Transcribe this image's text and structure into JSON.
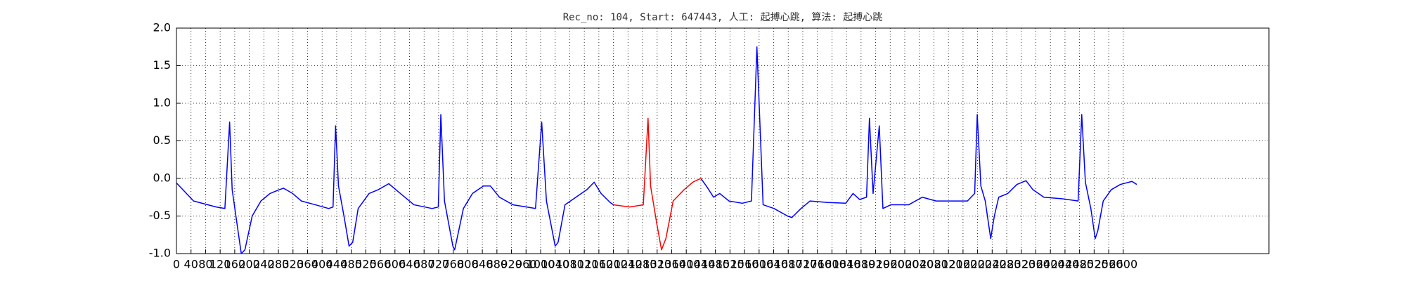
{
  "chart_data": {
    "type": "line",
    "title": "Rec_no: 104, Start: 647443, 人工: 起搏心跳, 算法: 起搏心跳",
    "xlim": [
      0,
      3000
    ],
    "ylim": [
      -1.0,
      2.0
    ],
    "xticks": [
      0,
      40,
      80,
      120,
      160,
      200,
      240,
      280,
      320,
      360,
      400,
      440,
      480,
      520,
      560,
      600,
      640,
      680,
      720,
      760,
      800,
      840,
      880,
      920,
      960,
      1000,
      1040,
      1080,
      1120,
      1160,
      1200,
      1240,
      1280,
      1320,
      1360,
      1400,
      1440,
      1480,
      1520,
      1560,
      1600,
      1640,
      1680,
      1720,
      1760,
      1800,
      1840,
      1880,
      1920,
      1960,
      2000,
      2040,
      2080,
      2120,
      2160,
      2200,
      2240,
      2280,
      2320,
      2360,
      2400,
      2440,
      2480,
      2520,
      2560,
      2600
    ],
    "yticks": [
      {
        "value": -1.0,
        "label": "-1.0"
      },
      -0.5,
      {
        "value": 0.0,
        "label": "0.0"
      },
      0.5,
      {
        "value": 1.0,
        "label": "1.0"
      },
      1.5,
      {
        "value": 2.0,
        "label": "2.0"
      }
    ],
    "grid": true,
    "series": [
      {
        "color": "#0000ff",
        "x": [
          0,
          47,
          109,
          133,
          146,
          153,
          178,
          188,
          208,
          232,
          257,
          282,
          294,
          319,
          343,
          381,
          418,
          430,
          437,
          445,
          460,
          474,
          484,
          499,
          529,
          554,
          583,
          615,
          652,
          702,
          719,
          726,
          736,
          759,
          764,
          788,
          813,
          843,
          862,
          887,
          924,
          986,
          1003,
          1016,
          1040,
          1048,
          1067,
          1097,
          1127,
          1147,
          1166,
          1191,
          1200,
          1320,
          1440,
          1455,
          1475,
          1492,
          1517,
          1554,
          1579,
          1594,
          1611,
          1641,
          1678,
          1690,
          1715,
          1740,
          1789,
          1838,
          1858,
          1876,
          1895,
          1903,
          1913,
          1930,
          1940,
          1962,
          2011,
          2048,
          2086,
          2135,
          2172,
          2192,
          2199,
          2209,
          2221,
          2236,
          2246,
          2258,
          2283,
          2308,
          2333,
          2352,
          2382,
          2431,
          2476,
          2486,
          2496,
          2511,
          2523,
          2530,
          2545,
          2567,
          2592,
          2624,
          2637
        ],
        "values": [
          -0.06,
          -0.3,
          -0.38,
          -0.4,
          0.75,
          -0.15,
          -1.0,
          -0.95,
          -0.5,
          -0.3,
          -0.2,
          -0.15,
          -0.13,
          -0.2,
          -0.3,
          -0.35,
          -0.4,
          -0.38,
          0.7,
          -0.1,
          -0.5,
          -0.9,
          -0.85,
          -0.4,
          -0.2,
          -0.15,
          -0.07,
          -0.2,
          -0.35,
          -0.4,
          -0.38,
          0.85,
          -0.3,
          -0.9,
          -0.95,
          -0.4,
          -0.2,
          -0.1,
          -0.1,
          -0.25,
          -0.35,
          -0.4,
          0.75,
          -0.3,
          -0.9,
          -0.85,
          -0.35,
          -0.25,
          -0.15,
          -0.05,
          -0.2,
          -0.32,
          -0.35,
          null,
          0.0,
          -0.1,
          -0.25,
          -0.2,
          -0.3,
          -0.33,
          -0.3,
          1.75,
          -0.35,
          -0.4,
          -0.5,
          -0.52,
          -0.4,
          -0.3,
          -0.32,
          -0.33,
          -0.2,
          -0.28,
          -0.25,
          0.8,
          -0.2,
          0.7,
          -0.4,
          -0.35,
          -0.35,
          -0.25,
          -0.3,
          -0.3,
          -0.3,
          -0.2,
          0.85,
          -0.1,
          -0.3,
          -0.8,
          -0.5,
          -0.25,
          -0.2,
          -0.08,
          -0.03,
          -0.15,
          -0.25,
          -0.27,
          -0.3,
          0.85,
          -0.05,
          -0.4,
          -0.8,
          -0.7,
          -0.3,
          -0.15,
          -0.08,
          -0.04,
          -0.08
        ]
      },
      {
        "color": "#ff0000",
        "x": [
          1200,
          1245,
          1282,
          1295,
          1302,
          1319,
          1332,
          1344,
          1364,
          1394,
          1418,
          1440
        ],
        "values": [
          -0.35,
          -0.38,
          -0.35,
          0.8,
          -0.1,
          -0.6,
          -0.95,
          -0.8,
          -0.3,
          -0.15,
          -0.05,
          0.0
        ]
      }
    ]
  }
}
